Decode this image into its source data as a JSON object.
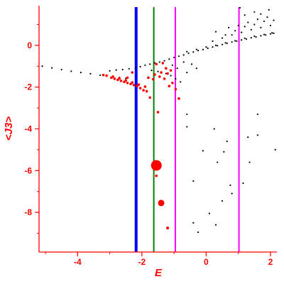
{
  "chart_data": {
    "type": "scatter",
    "title": "",
    "xlabel": "E",
    "ylabel": "<J3>",
    "xlim": [
      -5.2,
      2.2
    ],
    "ylim": [
      -9.9,
      1.9
    ],
    "x_ticks": [
      -4,
      -2,
      0,
      2
    ],
    "y_ticks": [
      0,
      -2,
      -4,
      -6,
      -8
    ],
    "grid": false,
    "colors": {
      "axis": "#ff0000",
      "labels": "#ff0000",
      "black_points": "#000000",
      "red_points": "#ff0000"
    },
    "vertical_lines": [
      {
        "x": -2.18,
        "color": "#0000ff"
      },
      {
        "x": -1.63,
        "color": "#008000"
      },
      {
        "x": -0.96,
        "color": "#ff00ff"
      },
      {
        "x": 1.02,
        "color": "#ff00ff"
      }
    ],
    "series": [
      {
        "color": "#000000",
        "points": [
          [
            -5.1,
            -1.0
          ],
          [
            -4.8,
            -1.08
          ],
          [
            -4.5,
            -1.16
          ],
          [
            -4.2,
            -1.24
          ],
          [
            -3.9,
            -1.3
          ],
          [
            -3.6,
            -1.36
          ],
          [
            -3.3,
            -1.43
          ],
          [
            -3.1,
            -1.47
          ],
          [
            -2.9,
            -1.5
          ],
          [
            -2.7,
            -1.54
          ],
          [
            -2.5,
            -1.58
          ],
          [
            -3.0,
            -1.22
          ],
          [
            -2.8,
            -1.18
          ],
          [
            -2.6,
            -1.16
          ],
          [
            -2.4,
            -1.12
          ],
          [
            -2.2,
            -1.08
          ],
          [
            -2.05,
            -1.02
          ],
          [
            -1.9,
            -0.95
          ],
          [
            -1.75,
            -0.9
          ],
          [
            -1.6,
            -0.84
          ],
          [
            -1.45,
            -0.8
          ],
          [
            -1.3,
            -0.74
          ],
          [
            -1.15,
            -0.66
          ],
          [
            -1.0,
            -0.58
          ],
          [
            -0.85,
            -0.52
          ],
          [
            -0.7,
            -0.46
          ],
          [
            -0.55,
            -0.38
          ],
          [
            -0.4,
            -0.32
          ],
          [
            -0.25,
            -0.25
          ],
          [
            -0.1,
            -0.2
          ],
          [
            0.05,
            -0.14
          ],
          [
            0.2,
            -0.08
          ],
          [
            0.35,
            -0.02
          ],
          [
            0.5,
            0.04
          ],
          [
            0.65,
            0.1
          ],
          [
            0.8,
            0.16
          ],
          [
            0.95,
            0.2
          ],
          [
            1.1,
            0.26
          ],
          [
            1.25,
            0.3
          ],
          [
            1.4,
            0.36
          ],
          [
            1.55,
            0.4
          ],
          [
            1.7,
            0.46
          ],
          [
            1.85,
            0.5
          ],
          [
            2.0,
            0.55
          ],
          [
            2.1,
            0.58
          ],
          [
            -0.6,
            -0.3
          ],
          [
            -0.3,
            -0.2
          ],
          [
            0.0,
            -0.08
          ],
          [
            0.3,
            0.0
          ],
          [
            0.6,
            0.12
          ],
          [
            0.9,
            0.22
          ],
          [
            1.2,
            0.34
          ],
          [
            1.5,
            0.44
          ],
          [
            1.8,
            0.52
          ],
          [
            2.05,
            0.6
          ],
          [
            0.2,
            0.2
          ],
          [
            0.5,
            0.35
          ],
          [
            0.8,
            0.5
          ],
          [
            1.1,
            0.62
          ],
          [
            1.4,
            0.75
          ],
          [
            1.7,
            0.85
          ],
          [
            2.0,
            0.95
          ],
          [
            0.6,
            0.5
          ],
          [
            0.9,
            0.7
          ],
          [
            1.2,
            0.9
          ],
          [
            1.5,
            1.0
          ],
          [
            1.8,
            1.15
          ],
          [
            2.1,
            1.2
          ],
          [
            1.0,
            0.95
          ],
          [
            1.3,
            1.1
          ],
          [
            1.6,
            1.25
          ],
          [
            1.9,
            1.35
          ],
          [
            0.3,
            0.65
          ],
          [
            0.7,
            0.85
          ],
          [
            1.2,
            1.45
          ],
          [
            1.5,
            1.6
          ],
          [
            1.7,
            1.5
          ],
          [
            1.95,
            1.7
          ],
          [
            1.05,
            1.8
          ],
          [
            -1.1,
            -1.45
          ],
          [
            -0.95,
            -1.6
          ],
          [
            -0.8,
            -1.75
          ],
          [
            -1.25,
            -1.35
          ],
          [
            -1.5,
            -1.25
          ],
          [
            -1.7,
            -1.2
          ],
          [
            -0.9,
            -1.1
          ],
          [
            -0.6,
            -1.3
          ],
          [
            -0.3,
            -1.1
          ],
          [
            -0.45,
            -0.9
          ],
          [
            -0.7,
            -0.8
          ],
          [
            -1.05,
            -0.95
          ],
          [
            -0.6,
            -3.3
          ],
          [
            0.25,
            -4.0
          ],
          [
            0.35,
            -5.6
          ],
          [
            0.55,
            -5.1
          ],
          [
            0.75,
            -6.7
          ],
          [
            0.65,
            -4.6
          ],
          [
            1.3,
            -4.4
          ],
          [
            1.6,
            -4.3
          ],
          [
            2.15,
            -5.0
          ],
          [
            1.35,
            -5.6
          ],
          [
            0.8,
            -7.1
          ],
          [
            -0.1,
            -5.05
          ],
          [
            -0.6,
            -3.9
          ],
          [
            -0.4,
            -6.5
          ],
          [
            0.3,
            -8.6
          ],
          [
            0.1,
            -8.05
          ],
          [
            -0.4,
            -8.5
          ],
          [
            -0.25,
            -8.95
          ],
          [
            1.6,
            -3.3
          ],
          [
            1.15,
            -6.6
          ],
          [
            0.5,
            -7.45
          ]
        ]
      },
      {
        "color": "#ff0000",
        "points": [
          [
            -2.95,
            -1.55
          ],
          [
            -2.85,
            -1.6
          ],
          [
            -2.75,
            -1.65
          ],
          [
            -2.65,
            -1.7
          ],
          [
            -2.55,
            -1.75
          ],
          [
            -2.45,
            -1.8
          ],
          [
            -2.35,
            -1.85
          ],
          [
            -2.25,
            -1.9
          ],
          [
            -2.15,
            -1.95
          ],
          [
            -2.05,
            -2.05
          ],
          [
            -1.95,
            -2.15
          ],
          [
            -1.85,
            -2.2
          ],
          [
            -3.1,
            -1.45
          ],
          [
            -3.2,
            -1.42
          ],
          [
            -2.9,
            -1.5
          ],
          [
            -2.7,
            -1.58
          ],
          [
            -2.5,
            -1.68
          ],
          [
            -2.3,
            -1.78
          ],
          [
            -2.1,
            -1.88
          ],
          [
            -1.9,
            -1.98
          ],
          [
            -1.8,
            -1.55
          ],
          [
            -1.6,
            -1.4
          ],
          [
            -1.4,
            -1.3
          ],
          [
            -1.2,
            -1.35
          ],
          [
            -1.65,
            -1.62
          ],
          [
            -1.45,
            -1.5
          ],
          [
            -1.3,
            -1.6
          ],
          [
            -1.15,
            -1.95
          ],
          [
            -1.05,
            -1.8
          ],
          [
            -0.95,
            -2.1
          ],
          [
            -1.55,
            -0.9
          ],
          [
            -1.35,
            -0.85
          ],
          [
            -1.25,
            -1.1
          ],
          [
            -1.1,
            -1.2
          ],
          [
            -2.3,
            -1.3
          ],
          [
            -2.45,
            -1.55
          ],
          [
            -1.75,
            -2.5
          ],
          [
            -0.85,
            -2.55
          ],
          [
            -1.5,
            -3.2
          ],
          [
            -1.55,
            -6.25
          ]
        ]
      }
    ],
    "large_red_points": [
      {
        "x": -1.55,
        "y": -5.75,
        "size": "large"
      },
      {
        "x": -1.4,
        "y": -7.55,
        "size": "medium"
      },
      {
        "x": -1.2,
        "y": -8.75,
        "size": "small"
      }
    ]
  }
}
